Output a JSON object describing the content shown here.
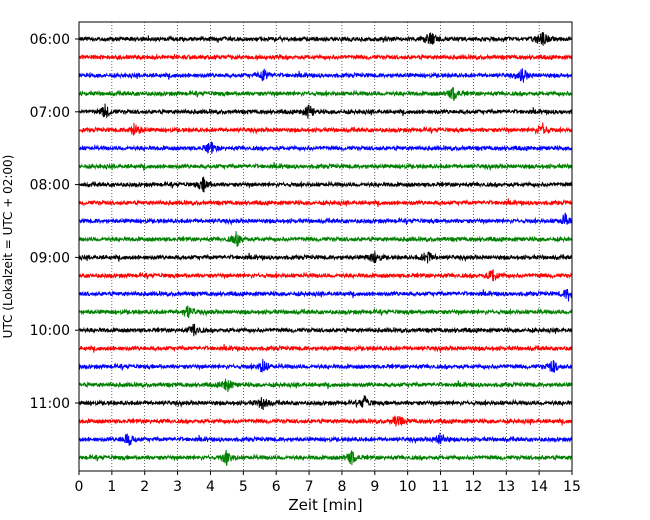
{
  "chart_data": {
    "type": "line",
    "title": "",
    "xlabel": "Zeit  [min]",
    "ylabel": "UTC (Lokalzeit = UTC + 02:00)",
    "xlim": [
      0,
      15
    ],
    "x_ticks": [
      "0",
      "1",
      "2",
      "3",
      "4",
      "5",
      "6",
      "7",
      "8",
      "9",
      "10",
      "11",
      "12",
      "13",
      "14",
      "15"
    ],
    "y_tick_labels": [
      "06:00",
      "07:00",
      "08:00",
      "09:00",
      "10:00",
      "11:00"
    ],
    "grid": "vertical dotted at each minute",
    "trace_interval_minutes": 15,
    "color_cycle": [
      "#000000",
      "#ff0000",
      "#0000ff",
      "#008000"
    ],
    "traces": [
      {
        "start": "06:00",
        "color": "#000000",
        "events_min": [
          10.7,
          14.1
        ]
      },
      {
        "start": "06:15",
        "color": "#ff0000",
        "events_min": []
      },
      {
        "start": "06:30",
        "color": "#0000ff",
        "events_min": [
          5.6,
          13.5
        ]
      },
      {
        "start": "06:45",
        "color": "#008000",
        "events_min": [
          11.4
        ]
      },
      {
        "start": "07:00",
        "color": "#000000",
        "events_min": [
          0.8,
          7.0
        ]
      },
      {
        "start": "07:15",
        "color": "#ff0000",
        "events_min": [
          1.7,
          14.1
        ]
      },
      {
        "start": "07:30",
        "color": "#0000ff",
        "events_min": [
          4.0
        ]
      },
      {
        "start": "07:45",
        "color": "#008000",
        "events_min": []
      },
      {
        "start": "08:00",
        "color": "#000000",
        "events_min": [
          3.8
        ]
      },
      {
        "start": "08:15",
        "color": "#ff0000",
        "events_min": []
      },
      {
        "start": "08:30",
        "color": "#0000ff",
        "events_min": [
          14.8
        ]
      },
      {
        "start": "08:45",
        "color": "#008000",
        "events_min": [
          4.8
        ]
      },
      {
        "start": "09:00",
        "color": "#000000",
        "events_min": [
          9.0,
          10.6
        ]
      },
      {
        "start": "09:15",
        "color": "#ff0000",
        "events_min": [
          12.6
        ]
      },
      {
        "start": "09:30",
        "color": "#0000ff",
        "events_min": [
          14.9
        ]
      },
      {
        "start": "09:45",
        "color": "#008000",
        "events_min": [
          3.3
        ]
      },
      {
        "start": "10:00",
        "color": "#000000",
        "events_min": [
          3.5
        ]
      },
      {
        "start": "10:15",
        "color": "#ff0000",
        "events_min": []
      },
      {
        "start": "10:30",
        "color": "#0000ff",
        "events_min": [
          5.6,
          14.4
        ]
      },
      {
        "start": "10:45",
        "color": "#008000",
        "events_min": [
          4.5
        ]
      },
      {
        "start": "11:00",
        "color": "#000000",
        "events_min": [
          5.6,
          8.7
        ]
      },
      {
        "start": "11:15",
        "color": "#ff0000",
        "events_min": [
          9.7
        ]
      },
      {
        "start": "11:30",
        "color": "#0000ff",
        "events_min": [
          1.5,
          11.0
        ]
      },
      {
        "start": "11:45",
        "color": "#008000",
        "events_min": [
          4.5,
          8.3
        ]
      }
    ]
  }
}
